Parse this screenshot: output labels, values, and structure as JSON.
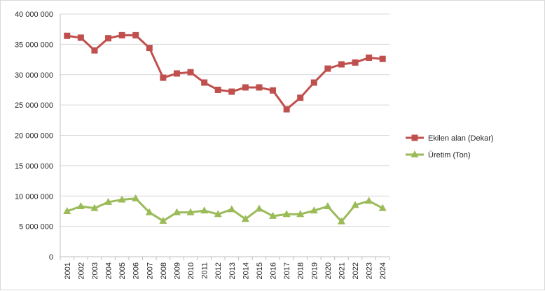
{
  "chart_data": {
    "type": "line",
    "title": "",
    "xlabel": "",
    "ylabel": "",
    "ylim": [
      0,
      40000000
    ],
    "yticks": [
      0,
      5000000,
      10000000,
      15000000,
      20000000,
      25000000,
      30000000,
      35000000,
      40000000
    ],
    "ytick_labels": [
      "0",
      "5 000 000",
      "10 000 000",
      "15 000 000",
      "20 000 000",
      "25 000 000",
      "30 000 000",
      "35 000 000",
      "40 000 000"
    ],
    "grid": true,
    "legend_position": "right",
    "categories": [
      "2001",
      "2002",
      "2003",
      "2004",
      "2005",
      "2006",
      "2007",
      "2008",
      "2009",
      "2010",
      "2011",
      "2012",
      "2013",
      "2014",
      "2015",
      "2016",
      "2017",
      "2018",
      "2019",
      "2020",
      "2021",
      "2022",
      "2023",
      "2024"
    ],
    "series": [
      {
        "name": "Ekilen alan  (Dekar)",
        "color": "#c0504d",
        "marker": "square",
        "values": [
          36400000,
          36100000,
          34000000,
          36000000,
          36500000,
          36500000,
          34400000,
          29500000,
          30200000,
          30400000,
          28700000,
          27500000,
          27200000,
          27900000,
          27900000,
          27400000,
          24300000,
          26200000,
          28700000,
          31000000,
          31700000,
          32000000,
          32800000,
          32600000
        ]
      },
      {
        "name": "Üretim (Ton)",
        "color": "#9bbb59",
        "marker": "triangle",
        "values": [
          7500000,
          8300000,
          8000000,
          9000000,
          9400000,
          9600000,
          7300000,
          5900000,
          7300000,
          7300000,
          7600000,
          7000000,
          7800000,
          6200000,
          7900000,
          6700000,
          7000000,
          7000000,
          7600000,
          8300000,
          5800000,
          8500000,
          9200000,
          8000000
        ]
      }
    ]
  }
}
